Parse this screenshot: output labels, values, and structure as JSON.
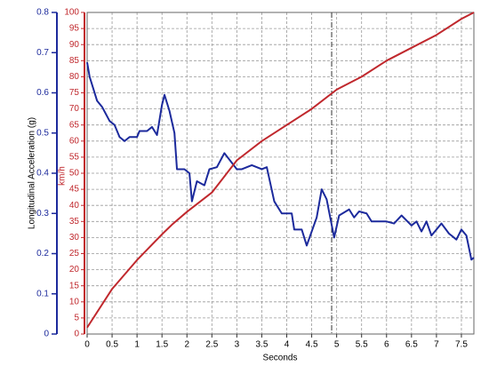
{
  "chart_data": {
    "type": "line",
    "x_label": "Seconds",
    "y_label": "Longitudinal Acceleration (g)",
    "y2_label": "km/h",
    "xlim": [
      0,
      7.75
    ],
    "xticks": [
      0,
      0.5,
      1,
      1.5,
      2,
      2.5,
      3,
      3.5,
      4,
      4.5,
      5,
      5.5,
      6,
      6.5,
      7,
      7.5
    ],
    "ylim": [
      0,
      0.8
    ],
    "yticks": [
      0,
      0.1,
      0.2,
      0.3,
      0.4,
      0.5,
      0.6,
      0.7,
      0.8
    ],
    "y2lim": [
      0,
      100
    ],
    "y2ticks": [
      0,
      5,
      10,
      15,
      20,
      25,
      30,
      35,
      40,
      45,
      50,
      55,
      60,
      65,
      70,
      75,
      80,
      85,
      90,
      95,
      100
    ],
    "grid": true,
    "cursor": 4.9,
    "series": [
      {
        "axis": "y",
        "color": "#1c2a9c",
        "x": [
          0,
          0.05,
          0.2,
          0.3,
          0.45,
          0.55,
          0.65,
          0.75,
          0.85,
          1,
          1.05,
          1.2,
          1.3,
          1.4,
          1.5,
          1.55,
          1.65,
          1.75,
          1.8,
          1.95,
          2.05,
          2.1,
          2.2,
          2.35,
          2.45,
          2.6,
          2.75,
          3,
          3.1,
          3.3,
          3.5,
          3.6,
          3.75,
          3.9,
          4.1,
          4.15,
          4.3,
          4.4,
          4.6,
          4.7,
          4.8,
          4.95,
          5.05,
          5.25,
          5.35,
          5.45,
          5.6,
          5.7,
          6,
          6.15,
          6.3,
          6.5,
          6.6,
          6.7,
          6.8,
          6.9,
          7.1,
          7.25,
          7.4,
          7.5,
          7.6,
          7.7,
          7.75
        ],
        "values": [
          0.676,
          0.64,
          0.58,
          0.565,
          0.53,
          0.52,
          0.49,
          0.48,
          0.49,
          0.49,
          0.505,
          0.505,
          0.515,
          0.495,
          0.57,
          0.595,
          0.555,
          0.5,
          0.41,
          0.41,
          0.4,
          0.33,
          0.38,
          0.37,
          0.41,
          0.415,
          0.45,
          0.41,
          0.41,
          0.42,
          0.41,
          0.415,
          0.33,
          0.3,
          0.3,
          0.26,
          0.26,
          0.22,
          0.29,
          0.36,
          0.335,
          0.24,
          0.295,
          0.31,
          0.29,
          0.305,
          0.3,
          0.28,
          0.28,
          0.275,
          0.295,
          0.27,
          0.28,
          0.255,
          0.28,
          0.245,
          0.275,
          0.25,
          0.235,
          0.26,
          0.245,
          0.185,
          0.19
        ]
      },
      {
        "axis": "y2",
        "color": "#c0282d",
        "x": [
          0,
          0.5,
          1,
          1.5,
          1.7,
          2,
          2.5,
          3,
          3.5,
          4,
          4.5,
          5,
          5.5,
          6,
          6.5,
          7,
          7.5,
          7.75
        ],
        "values": [
          2,
          14,
          23,
          31,
          34,
          38,
          44,
          54,
          60,
          65,
          70,
          76,
          80,
          85,
          89,
          93,
          98,
          100
        ]
      }
    ]
  }
}
